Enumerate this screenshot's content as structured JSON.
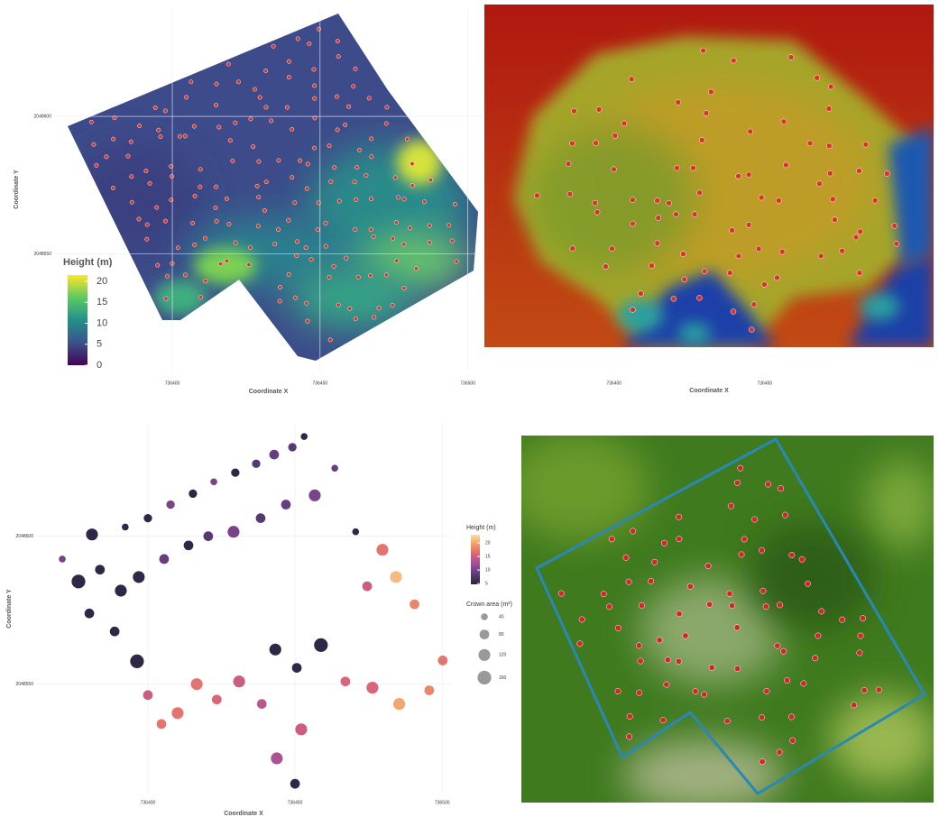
{
  "chart_data": [
    {
      "type": "raster",
      "xlabel": "Coordinate X",
      "ylabel": "Coordinate Y",
      "xlim": [
        736360,
        736505
      ],
      "xticks": [
        736400,
        736450,
        736500
      ],
      "ylim": [
        2048508,
        2048639
      ],
      "yticks": [
        2048550,
        2048600
      ],
      "colorbar": {
        "title": "Height (m)",
        "lim": [
          0,
          21.5
        ],
        "ticks": [
          0,
          5,
          10,
          15,
          20
        ],
        "colors": [
          "#440154",
          "#3b528b",
          "#21908d",
          "#5dc963",
          "#fde725"
        ]
      }
    },
    {
      "type": "image",
      "xlabel": "Coordinate X",
      "xlim": [
        736357,
        736506
      ],
      "xticks": [
        736400,
        736450
      ]
    },
    {
      "type": "scatter",
      "xlabel": "Coordinate X",
      "ylabel": "Coordinate Y",
      "grid": true,
      "xlim": [
        736362,
        736503
      ],
      "xticks": [
        736400,
        736450,
        736500
      ],
      "ylim": [
        2048513,
        2048638
      ],
      "yticks": [
        2048550,
        2048600
      ],
      "x": [
        736453.1,
        736449.1,
        736442.9,
        736436.8,
        736429.7,
        736422.4,
        736415.3,
        736407.7,
        736400.0,
        736392.3,
        736381.0,
        736370.9,
        736376.4,
        736383.7,
        736390.8,
        736396.9,
        736405.5,
        736413.8,
        736420.5,
        736429.1,
        736438.3,
        736446.9,
        736456.7,
        736463.5,
        736470.6,
        736479.7,
        736484.3,
        736474.5,
        736490.6,
        736380.1,
        736388.7,
        736396.3,
        736400.0,
        736410.1,
        736404.6,
        736416.6,
        736423.4,
        736431.0,
        736438.7,
        736443.3,
        736450.6,
        736458.8,
        736467.1,
        736476.3,
        736485.4,
        736495.6,
        736500.2,
        736452.1,
        736443.8,
        736450.0
      ],
      "y": [
        2048633.7,
        2048630.1,
        2048627.6,
        2048624.5,
        2048621.5,
        2048618.4,
        2048614.4,
        2048610.7,
        2048606.1,
        2048603.1,
        2048600.6,
        2048592.3,
        2048584.7,
        2048588.7,
        2048581.6,
        2048586.2,
        2048592.3,
        2048596.9,
        2048600.0,
        2048601.5,
        2048606.1,
        2048610.7,
        2048613.8,
        2048623.0,
        2048601.5,
        2048595.4,
        2048586.2,
        2048583.1,
        2048577.0,
        2048573.9,
        2048567.8,
        2048557.7,
        2048546.3,
        2048540.2,
        2048536.5,
        2048550.0,
        2048544.8,
        2048550.9,
        2048543.3,
        2048561.7,
        2048555.5,
        2048563.2,
        2048550.9,
        2048548.8,
        2048543.3,
        2048547.9,
        2048558.0,
        2048534.7,
        2048524.9,
        2048516.3
      ],
      "color_values": [
        5,
        8,
        9,
        8,
        5,
        10,
        5,
        10,
        5,
        5,
        5,
        10,
        5,
        5,
        5,
        5,
        9,
        5,
        8,
        10,
        8,
        9,
        10,
        9,
        5,
        17,
        21,
        15,
        18,
        5,
        5,
        5,
        15,
        17,
        17,
        17,
        16,
        15,
        14,
        5,
        5,
        5,
        16,
        16,
        20,
        18,
        17,
        15,
        13,
        5
      ],
      "sizes": [
        40,
        60,
        80,
        60,
        60,
        40,
        60,
        60,
        60,
        40,
        120,
        40,
        160,
        80,
        120,
        120,
        80,
        80,
        80,
        120,
        80,
        80,
        120,
        40,
        40,
        120,
        120,
        80,
        80,
        80,
        80,
        160,
        80,
        120,
        80,
        120,
        80,
        120,
        80,
        120,
        80,
        160,
        80,
        120,
        120,
        80,
        80,
        120,
        120,
        80
      ],
      "colorbar": {
        "title": "Height (m)",
        "lim": [
          4.7,
          23
        ],
        "ticks": [
          5,
          10,
          15,
          20
        ],
        "colors": [
          "#2b2540",
          "#5b3a78",
          "#9a4d9e",
          "#d9607a",
          "#f29a62",
          "#f9e0a4"
        ]
      },
      "size_legend": {
        "title": "Crown area (m²)",
        "values": [
          40,
          80,
          120,
          160
        ]
      }
    },
    {
      "type": "photo"
    }
  ]
}
